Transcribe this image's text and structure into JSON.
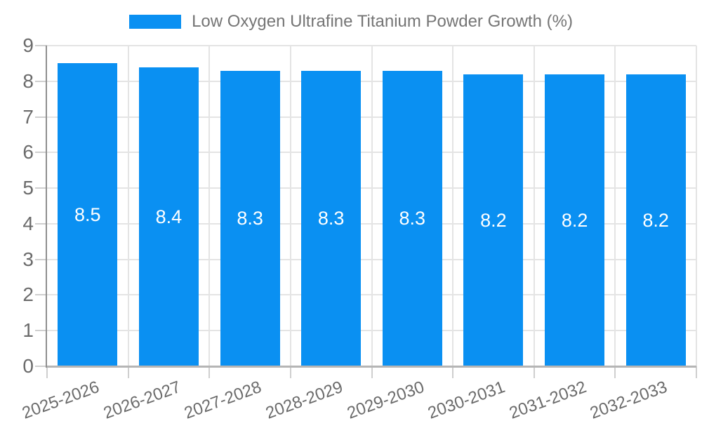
{
  "legend": {
    "label": "Low Oxygen Ultrafine Titanium Powder Growth (%)"
  },
  "chart_data": {
    "type": "bar",
    "title": "Low Oxygen Ultrafine Titanium Powder Growth (%)",
    "categories": [
      "2025-2026",
      "2026-2027",
      "2027-2028",
      "2028-2029",
      "2029-2030",
      "2030-2031",
      "2031-2032",
      "2032-2033"
    ],
    "values": [
      8.5,
      8.4,
      8.3,
      8.3,
      8.3,
      8.2,
      8.2,
      8.2
    ],
    "value_labels": [
      "8.5",
      "8.4",
      "8.3",
      "8.3",
      "8.3",
      "8.2",
      "8.2",
      "8.2"
    ],
    "xlabel": "",
    "ylabel": "",
    "ylim": [
      0,
      9
    ],
    "y_ticks": [
      0,
      1,
      2,
      3,
      4,
      5,
      6,
      7,
      8,
      9
    ],
    "grid": true,
    "legend_position": "top",
    "x_label_rotation_deg": -20,
    "colors": {
      "bar": "#0a90f2",
      "bar_value_text": "#ffffff",
      "axis_text": "#6b6b6b",
      "title_text": "#757575",
      "gridline": "#e4e4e4",
      "tick": "#cfcfcf",
      "x_axis_line": "#b5b5b5",
      "y_axis_line": "#8f8f8f",
      "background": "#ffffff"
    }
  }
}
